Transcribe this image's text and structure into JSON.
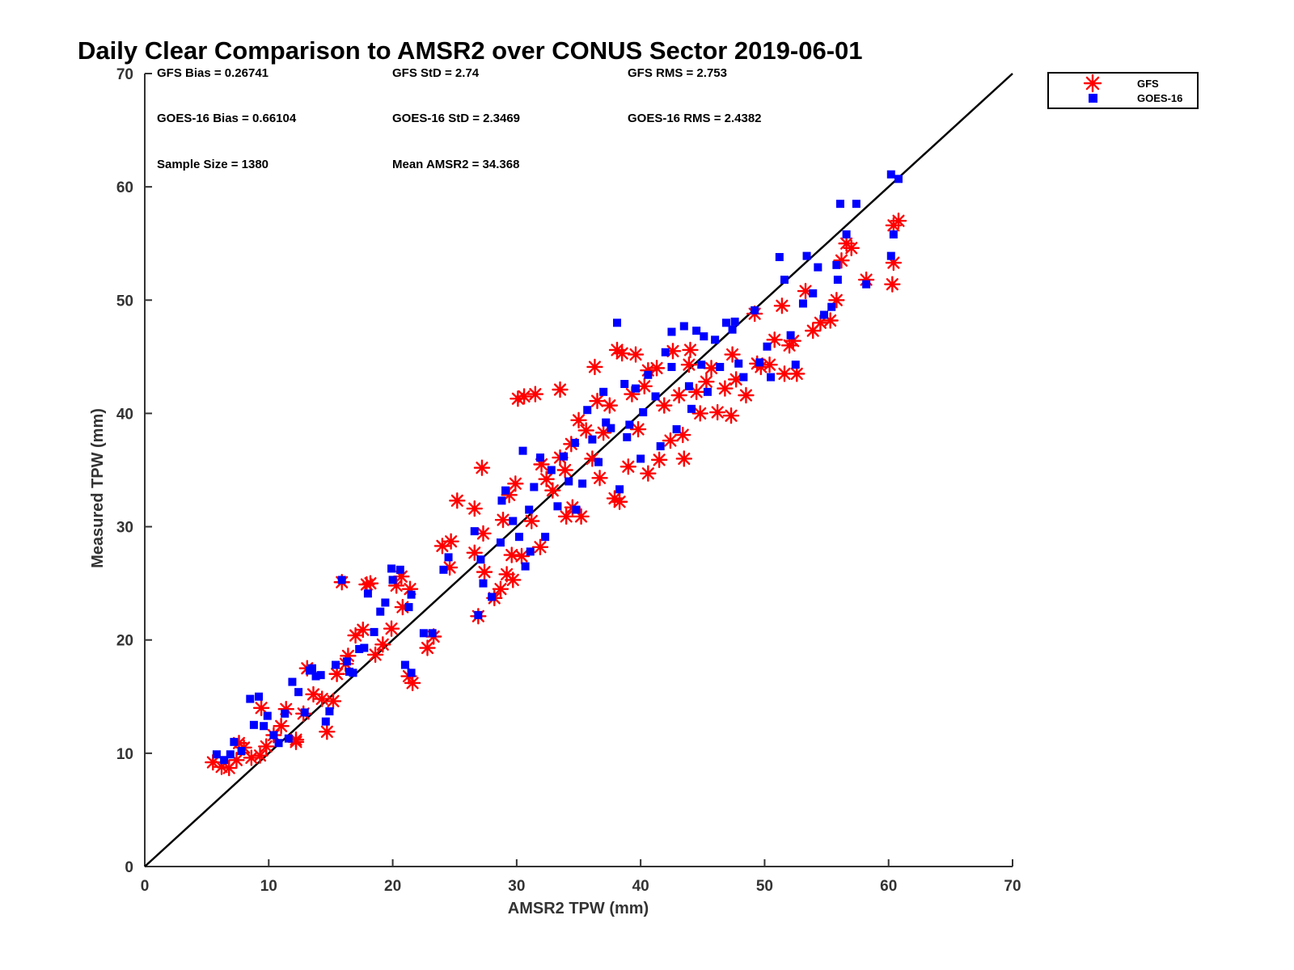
{
  "chart_data": {
    "type": "scatter",
    "title": "Daily Clear Comparison to AMSR2 over CONUS Sector 2019-06-01",
    "xlabel": "AMSR2 TPW (mm)",
    "ylabel": "Measured TPW (mm)",
    "xlim": [
      0,
      70
    ],
    "ylim": [
      0,
      70
    ],
    "xticks": [
      "0",
      "10",
      "20",
      "30",
      "40",
      "50",
      "60",
      "70"
    ],
    "yticks": [
      "0",
      "10",
      "20",
      "30",
      "40",
      "50",
      "60",
      "70"
    ],
    "grid": false,
    "legend_position": "outside-top-right",
    "reference_line": {
      "x": [
        0,
        70
      ],
      "y": [
        0,
        70
      ],
      "color": "#000000"
    },
    "stats": [
      "GFS Bias = 0.26741",
      "GFS StD = 2.74",
      "GFS RMS = 2.753",
      "GOES-16 Bias = 0.66104",
      "GOES-16 StD = 2.3469",
      "GOES-16 RMS = 2.4382",
      "Sample Size = 1380",
      "Mean AMSR2 = 34.368"
    ],
    "series": [
      {
        "name": "GFS",
        "marker": "asterisk",
        "color": "#ff0000",
        "points": [
          [
            5.5,
            9.2
          ],
          [
            6.2,
            8.8
          ],
          [
            6.8,
            8.7
          ],
          [
            7.4,
            9.4
          ],
          [
            8.0,
            10.5
          ],
          [
            8.6,
            9.6
          ],
          [
            9.3,
            9.8
          ],
          [
            9.8,
            10.6
          ],
          [
            10.4,
            11.6
          ],
          [
            11.0,
            12.4
          ],
          [
            11.4,
            13.9
          ],
          [
            12.2,
            11.2
          ],
          [
            12.8,
            13.5
          ],
          [
            13.6,
            15.2
          ],
          [
            14.3,
            14.8
          ],
          [
            14.7,
            11.9
          ],
          [
            15.2,
            14.6
          ],
          [
            15.5,
            17.0
          ],
          [
            15.9,
            25.1
          ],
          [
            16.4,
            18.6
          ],
          [
            17.0,
            20.4
          ],
          [
            17.6,
            20.9
          ],
          [
            17.9,
            24.9
          ],
          [
            18.6,
            18.7
          ],
          [
            19.2,
            19.6
          ],
          [
            19.9,
            21.0
          ],
          [
            20.3,
            24.8
          ],
          [
            20.8,
            22.9
          ],
          [
            21.3,
            16.8
          ],
          [
            21.6,
            16.2
          ],
          [
            21.4,
            24.5
          ],
          [
            22.8,
            19.3
          ],
          [
            23.3,
            20.3
          ],
          [
            24.0,
            28.3
          ],
          [
            24.6,
            26.4
          ],
          [
            26.6,
            31.6
          ],
          [
            26.9,
            22.1
          ],
          [
            27.3,
            29.4
          ],
          [
            27.4,
            26.0
          ],
          [
            28.2,
            23.7
          ],
          [
            28.7,
            24.5
          ],
          [
            28.9,
            30.6
          ],
          [
            29.4,
            32.8
          ],
          [
            29.9,
            33.8
          ],
          [
            29.6,
            27.5
          ],
          [
            30.4,
            27.4
          ],
          [
            30.1,
            41.3
          ],
          [
            30.6,
            41.5
          ],
          [
            31.5,
            41.7
          ],
          [
            31.2,
            30.5
          ],
          [
            32.0,
            35.5
          ],
          [
            32.4,
            34.2
          ],
          [
            32.9,
            33.2
          ],
          [
            33.5,
            36.1
          ],
          [
            33.9,
            35.0
          ],
          [
            34.4,
            37.3
          ],
          [
            35.0,
            39.4
          ],
          [
            35.2,
            30.9
          ],
          [
            35.6,
            38.5
          ],
          [
            36.1,
            36.0
          ],
          [
            36.5,
            41.1
          ],
          [
            37.0,
            38.3
          ],
          [
            37.5,
            40.7
          ],
          [
            37.9,
            32.5
          ],
          [
            38.3,
            32.2
          ],
          [
            38.5,
            45.3
          ],
          [
            38.1,
            45.6
          ],
          [
            39.0,
            35.3
          ],
          [
            39.3,
            41.7
          ],
          [
            39.8,
            38.6
          ],
          [
            40.3,
            42.4
          ],
          [
            40.6,
            43.8
          ],
          [
            41.3,
            44.0
          ],
          [
            41.5,
            35.9
          ],
          [
            41.9,
            40.7
          ],
          [
            42.4,
            37.6
          ],
          [
            42.6,
            45.5
          ],
          [
            43.1,
            41.6
          ],
          [
            43.4,
            38.1
          ],
          [
            43.9,
            44.3
          ],
          [
            44.5,
            41.9
          ],
          [
            44.8,
            40.0
          ],
          [
            45.3,
            42.8
          ],
          [
            45.7,
            44.0
          ],
          [
            46.2,
            40.1
          ],
          [
            46.8,
            42.2
          ],
          [
            47.3,
            39.8
          ],
          [
            47.4,
            45.2
          ],
          [
            48.5,
            41.6
          ],
          [
            49.2,
            48.8
          ],
          [
            49.7,
            44.1
          ],
          [
            50.4,
            44.3
          ],
          [
            50.8,
            46.5
          ],
          [
            51.4,
            49.5
          ],
          [
            51.6,
            43.5
          ],
          [
            52.0,
            46.0
          ],
          [
            52.3,
            46.4
          ],
          [
            52.6,
            43.5
          ],
          [
            53.3,
            50.8
          ],
          [
            53.9,
            47.3
          ],
          [
            54.5,
            48.0
          ],
          [
            55.3,
            48.2
          ],
          [
            55.8,
            50.0
          ],
          [
            56.2,
            53.5
          ],
          [
            56.6,
            55.0
          ],
          [
            57.0,
            54.6
          ],
          [
            58.2,
            51.8
          ],
          [
            60.3,
            51.4
          ],
          [
            60.4,
            53.3
          ],
          [
            60.4,
            56.6
          ],
          [
            60.8,
            57.0
          ],
          [
            29.2,
            25.8
          ],
          [
            26.6,
            27.7
          ],
          [
            34.0,
            30.9
          ],
          [
            36.3,
            44.1
          ],
          [
            44.0,
            45.6
          ],
          [
            47.7,
            43.0
          ],
          [
            29.7,
            25.3
          ],
          [
            12.2,
            11.0
          ],
          [
            13.1,
            17.5
          ],
          [
            18.2,
            25.0
          ],
          [
            20.7,
            25.6
          ],
          [
            31.9,
            28.2
          ],
          [
            39.6,
            45.2
          ],
          [
            40.6,
            34.7
          ],
          [
            27.2,
            35.2
          ],
          [
            36.7,
            34.3
          ],
          [
            49.4,
            44.4
          ],
          [
            43.5,
            36.0
          ],
          [
            16.2,
            17.9
          ],
          [
            9.4,
            14.0
          ],
          [
            7.6,
            10.9
          ],
          [
            34.5,
            31.7
          ],
          [
            25.2,
            32.3
          ],
          [
            33.5,
            42.1
          ],
          [
            24.7,
            28.7
          ]
        ]
      },
      {
        "name": "GOES-16",
        "marker": "square",
        "color": "#0000ff",
        "points": [
          [
            5.8,
            9.9
          ],
          [
            6.4,
            9.4
          ],
          [
            6.9,
            9.9
          ],
          [
            7.2,
            11.0
          ],
          [
            7.8,
            10.2
          ],
          [
            8.5,
            14.8
          ],
          [
            9.2,
            15.0
          ],
          [
            9.6,
            12.4
          ],
          [
            9.9,
            13.3
          ],
          [
            10.4,
            11.6
          ],
          [
            10.8,
            10.9
          ],
          [
            11.3,
            13.5
          ],
          [
            11.9,
            16.3
          ],
          [
            12.4,
            15.4
          ],
          [
            12.9,
            13.6
          ],
          [
            13.3,
            17.3
          ],
          [
            13.8,
            16.8
          ],
          [
            14.2,
            16.9
          ],
          [
            14.6,
            12.8
          ],
          [
            14.9,
            13.7
          ],
          [
            15.4,
            17.8
          ],
          [
            15.9,
            25.3
          ],
          [
            16.3,
            18.1
          ],
          [
            16.8,
            17.1
          ],
          [
            17.3,
            19.2
          ],
          [
            17.7,
            19.3
          ],
          [
            18.0,
            24.1
          ],
          [
            18.5,
            20.7
          ],
          [
            19.0,
            22.5
          ],
          [
            19.4,
            23.3
          ],
          [
            19.9,
            26.3
          ],
          [
            20.6,
            26.2
          ],
          [
            21.0,
            17.8
          ],
          [
            21.5,
            17.1
          ],
          [
            21.5,
            24.0
          ],
          [
            22.5,
            20.6
          ],
          [
            23.2,
            20.6
          ],
          [
            24.1,
            26.2
          ],
          [
            24.5,
            27.3
          ],
          [
            26.6,
            29.6
          ],
          [
            26.9,
            22.2
          ],
          [
            27.3,
            25.0
          ],
          [
            28.0,
            23.8
          ],
          [
            28.7,
            28.6
          ],
          [
            29.1,
            33.2
          ],
          [
            29.7,
            30.5
          ],
          [
            30.2,
            29.1
          ],
          [
            30.7,
            26.5
          ],
          [
            31.0,
            31.5
          ],
          [
            31.4,
            33.5
          ],
          [
            31.9,
            36.1
          ],
          [
            32.3,
            29.1
          ],
          [
            32.8,
            35.0
          ],
          [
            33.3,
            31.8
          ],
          [
            33.8,
            36.2
          ],
          [
            34.2,
            34.0
          ],
          [
            34.7,
            37.4
          ],
          [
            35.3,
            33.8
          ],
          [
            35.7,
            40.3
          ],
          [
            36.1,
            37.7
          ],
          [
            36.6,
            35.7
          ],
          [
            37.2,
            39.2
          ],
          [
            37.6,
            38.7
          ],
          [
            38.1,
            48.0
          ],
          [
            38.3,
            33.3
          ],
          [
            38.7,
            42.6
          ],
          [
            39.1,
            39.0
          ],
          [
            39.6,
            42.2
          ],
          [
            40.2,
            40.1
          ],
          [
            40.6,
            43.4
          ],
          [
            41.2,
            41.5
          ],
          [
            41.6,
            37.1
          ],
          [
            42.0,
            45.4
          ],
          [
            42.5,
            44.1
          ],
          [
            42.9,
            38.6
          ],
          [
            43.5,
            47.7
          ],
          [
            43.9,
            42.4
          ],
          [
            44.5,
            47.3
          ],
          [
            44.9,
            44.3
          ],
          [
            45.4,
            41.9
          ],
          [
            46.0,
            46.5
          ],
          [
            46.4,
            44.1
          ],
          [
            46.9,
            48.0
          ],
          [
            47.4,
            47.4
          ],
          [
            47.9,
            44.4
          ],
          [
            48.3,
            43.2
          ],
          [
            49.2,
            49.1
          ],
          [
            49.6,
            44.5
          ],
          [
            50.2,
            45.9
          ],
          [
            50.5,
            43.2
          ],
          [
            51.2,
            53.8
          ],
          [
            51.6,
            51.8
          ],
          [
            52.1,
            46.9
          ],
          [
            52.5,
            44.3
          ],
          [
            53.1,
            49.7
          ],
          [
            53.4,
            53.9
          ],
          [
            53.9,
            50.6
          ],
          [
            54.3,
            52.9
          ],
          [
            54.8,
            48.7
          ],
          [
            55.4,
            49.4
          ],
          [
            55.9,
            51.8
          ],
          [
            56.1,
            58.5
          ],
          [
            56.6,
            55.8
          ],
          [
            57.4,
            58.5
          ],
          [
            58.2,
            51.4
          ],
          [
            60.2,
            61.1
          ],
          [
            60.2,
            53.9
          ],
          [
            60.4,
            55.8
          ],
          [
            60.8,
            60.7
          ],
          [
            47.6,
            48.1
          ],
          [
            45.1,
            46.8
          ],
          [
            34.8,
            31.5
          ],
          [
            28.8,
            32.3
          ],
          [
            31.1,
            27.8
          ],
          [
            13.5,
            17.5
          ],
          [
            11.6,
            11.3
          ],
          [
            16.5,
            17.2
          ],
          [
            37.0,
            41.9
          ],
          [
            40.0,
            36.0
          ],
          [
            44.1,
            40.4
          ],
          [
            55.8,
            53.1
          ],
          [
            27.1,
            27.1
          ],
          [
            30.5,
            36.7
          ],
          [
            42.5,
            47.2
          ],
          [
            38.9,
            37.9
          ],
          [
            21.3,
            22.9
          ],
          [
            20.0,
            25.3
          ],
          [
            8.8,
            12.5
          ]
        ]
      }
    ]
  }
}
